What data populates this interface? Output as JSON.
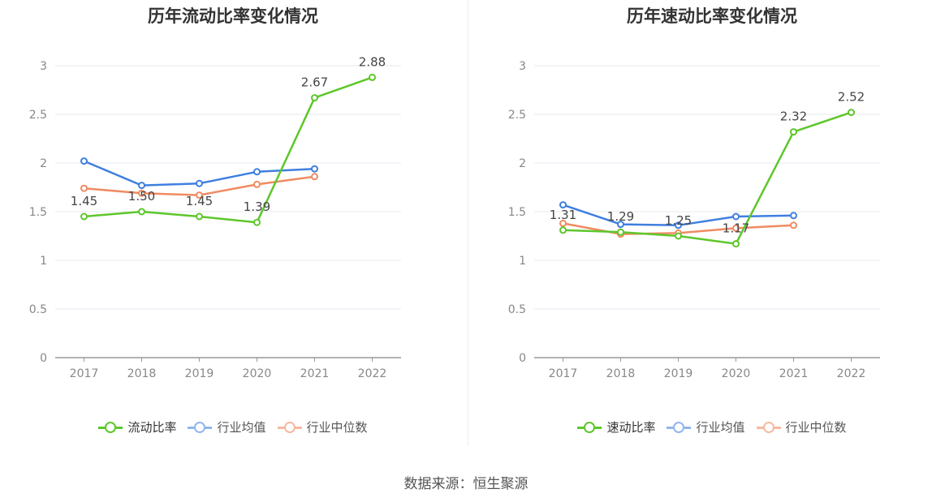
{
  "source": "数据来源：恒生聚源",
  "chart_data": [
    {
      "type": "line",
      "title": "历年流动比率变化情况",
      "categories": [
        "2017",
        "2018",
        "2019",
        "2020",
        "2021",
        "2022"
      ],
      "ylim": [
        0,
        3
      ],
      "yticks": [
        "0",
        "0.5",
        "1",
        "1.5",
        "2",
        "2.5",
        "3"
      ],
      "grid": true,
      "legend_position": "bottom",
      "series": [
        {
          "name": "流动比率",
          "color": "#5dc72b",
          "values": [
            1.45,
            1.5,
            1.45,
            1.39,
            2.67,
            2.88
          ],
          "labels": [
            "1.45",
            "1.50",
            "1.45",
            "1.39",
            "2.67",
            "2.88"
          ]
        },
        {
          "name": "行业均值",
          "color": "#3f7fe0",
          "values": [
            2.02,
            1.77,
            1.79,
            1.91,
            1.94,
            null
          ]
        },
        {
          "name": "行业中位数",
          "color": "#f08b62",
          "values": [
            1.74,
            1.69,
            1.67,
            1.78,
            1.86,
            null
          ]
        }
      ]
    },
    {
      "type": "line",
      "title": "历年速动比率变化情况",
      "categories": [
        "2017",
        "2018",
        "2019",
        "2020",
        "2021",
        "2022"
      ],
      "ylim": [
        0,
        3
      ],
      "yticks": [
        "0",
        "0.5",
        "1",
        "1.5",
        "2",
        "2.5",
        "3"
      ],
      "grid": true,
      "legend_position": "bottom",
      "series": [
        {
          "name": "速动比率",
          "color": "#5dc72b",
          "values": [
            1.31,
            1.29,
            1.25,
            1.17,
            2.32,
            2.52
          ],
          "labels": [
            "1.31",
            "1.29",
            "1.25",
            "1.17",
            "2.32",
            "2.52"
          ]
        },
        {
          "name": "行业均值",
          "color": "#3f7fe0",
          "values": [
            1.57,
            1.37,
            1.36,
            1.45,
            1.46,
            null
          ]
        },
        {
          "name": "行业中位数",
          "color": "#f08b62",
          "values": [
            1.38,
            1.27,
            1.28,
            1.33,
            1.36,
            null
          ]
        }
      ]
    }
  ]
}
